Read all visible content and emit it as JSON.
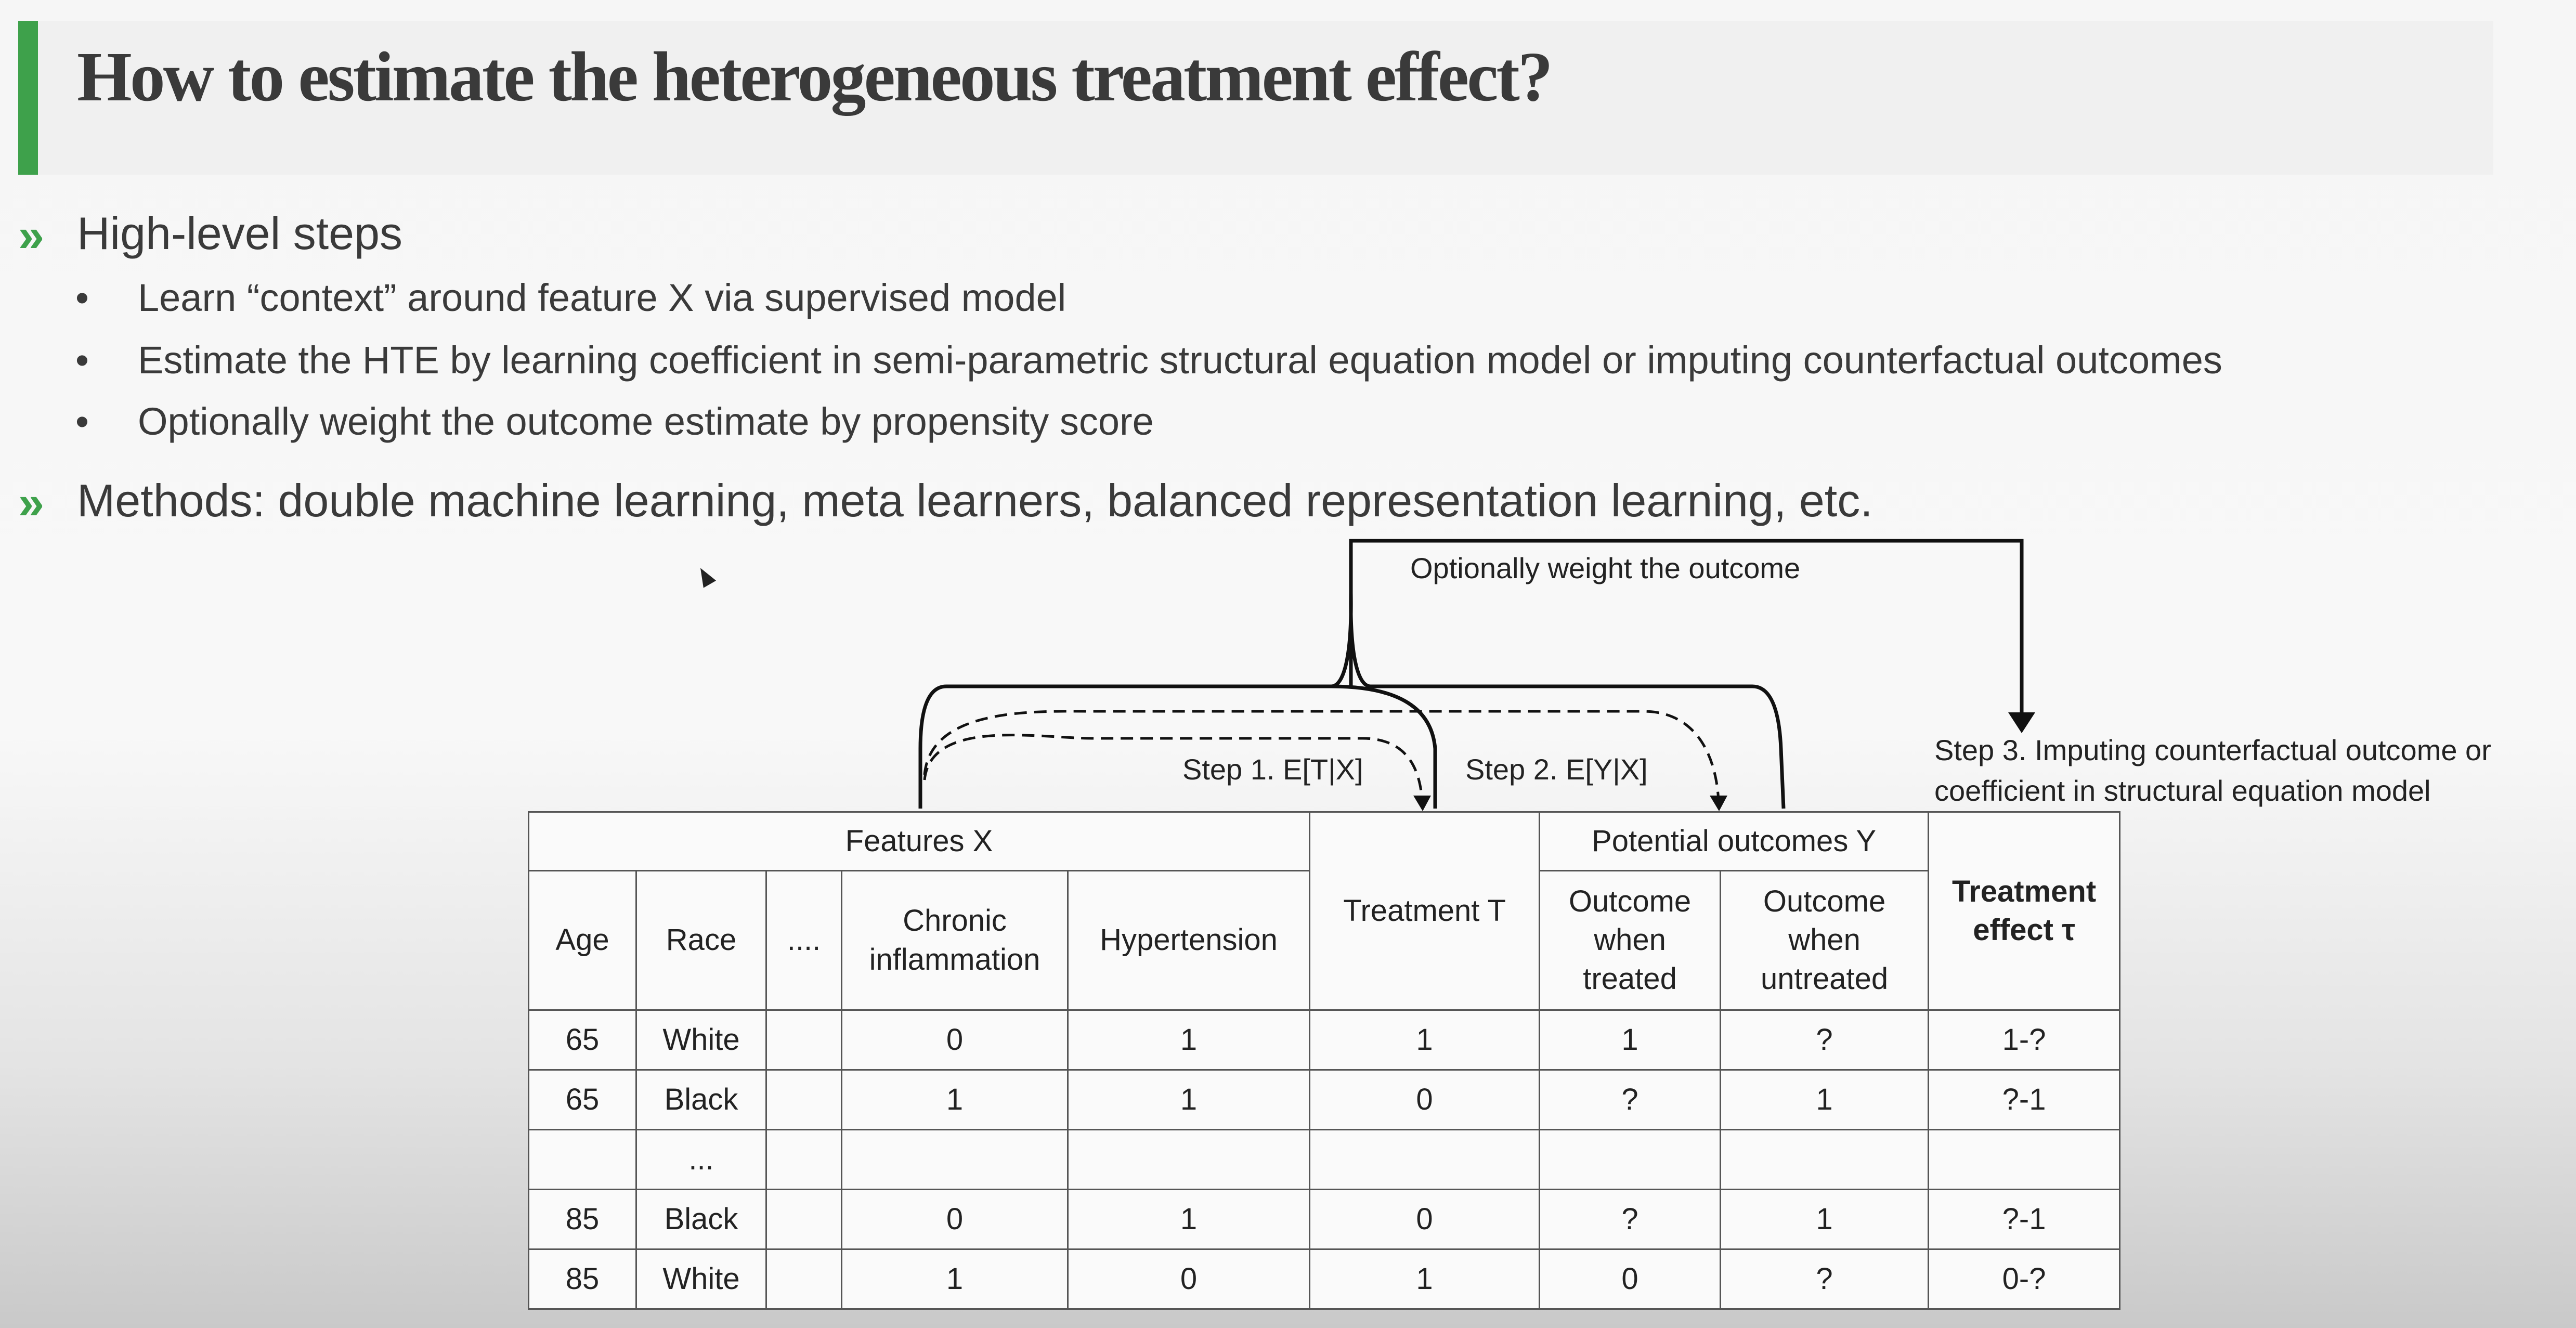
{
  "slide": {
    "title": "How to estimate the heterogeneous treatment effect?",
    "bullets": [
      {
        "marker": "»",
        "text": "High-level steps"
      },
      {
        "marker": "»",
        "text": "Methods: double machine learning, meta learners, balanced representation learning, etc."
      }
    ],
    "sub_bullets": [
      {
        "marker": "•",
        "text": "Learn “context” around feature X via supervised model"
      },
      {
        "marker": "•",
        "text": "Estimate the HTE by learning coefficient in semi-parametric structural equation model or imputing counterfactual outcomes"
      },
      {
        "marker": "•",
        "text": "Optionally weight the outcome estimate by propensity score"
      }
    ]
  },
  "diagram": {
    "weight_label": "Optionally weight the outcome",
    "step1_label": "Step 1. E[T|X]",
    "step2_label": "Step 2. E[Y|X]",
    "step3_line1": "Step 3. Imputing counterfactual outcome or",
    "step3_line2": "coefficient in structural equation model"
  },
  "table": {
    "group_features": "Features X",
    "group_outcomes": "Potential outcomes Y",
    "col_treatment": "Treatment T",
    "col_effect_line1": "Treatment",
    "col_effect_line2": "effect τ",
    "col_age": "Age",
    "col_race": "Race",
    "col_ellipsis": "....",
    "col_chronic_line1": "Chronic",
    "col_chronic_line2": "inflammation",
    "col_hypertension": "Hypertension",
    "col_treated_line1": "Outcome",
    "col_treated_line2": "when",
    "col_treated_line3": "treated",
    "col_untreated_line1": "Outcome",
    "col_untreated_line2": "when",
    "col_untreated_line3": "untreated",
    "rows": [
      {
        "age": "65",
        "race": "White",
        "dots": "",
        "chronic": "0",
        "hyper": "1",
        "treat": "1",
        "treated": "1",
        "untreated": "?",
        "effect": "1-?"
      },
      {
        "age": "65",
        "race": "Black",
        "dots": "",
        "chronic": "1",
        "hyper": "1",
        "treat": "0",
        "treated": "?",
        "untreated": "1",
        "effect": "?-1"
      },
      {
        "age": "",
        "race": "...",
        "dots": "",
        "chronic": "",
        "hyper": "",
        "treat": "",
        "treated": "",
        "untreated": "",
        "effect": ""
      },
      {
        "age": "85",
        "race": "Black",
        "dots": "",
        "chronic": "0",
        "hyper": "1",
        "treat": "0",
        "treated": "?",
        "untreated": "1",
        "effect": "?-1"
      },
      {
        "age": "85",
        "race": "White",
        "dots": "",
        "chronic": "1",
        "hyper": "0",
        "treat": "1",
        "treated": "0",
        "untreated": "?",
        "effect": "0-?"
      }
    ]
  },
  "colors": {
    "accent": "#3ea14b",
    "text": "#3a3a3a"
  }
}
